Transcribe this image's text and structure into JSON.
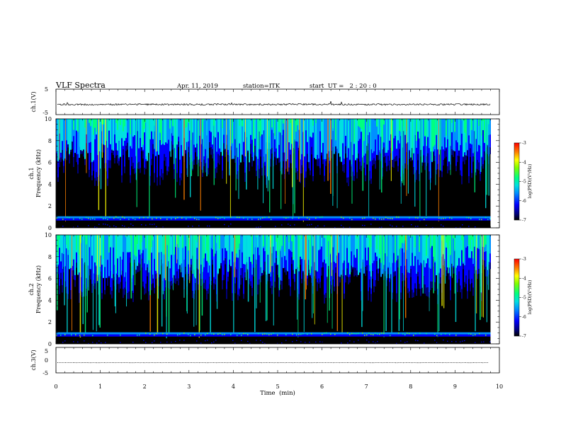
{
  "header": {
    "title": "VLF Spectra",
    "date": "Apr. 11, 2019",
    "station": "station=ITK",
    "start": "start  UT =   2 : 20 : 0"
  },
  "chart_data": [
    {
      "type": "line",
      "panel": "ch1-waveform",
      "ylabel": "ch.1(V)",
      "ylim": [
        -5,
        5
      ],
      "yticks": [
        "5",
        "-5"
      ],
      "xlim": [
        0,
        10
      ],
      "trace_level": -1,
      "grid": false
    },
    {
      "type": "heatmap",
      "panel": "ch1-spectrogram",
      "ylabel_line1": "ch.1",
      "ylabel_line2": "Frequency (kHz)",
      "ylim": [
        0,
        10
      ],
      "yticks": [
        "0",
        "2",
        "4",
        "6",
        "8",
        "10"
      ],
      "xlim": [
        0,
        10
      ],
      "data_end_min": 9.8,
      "colorbar": {
        "range": [
          -7,
          -3
        ],
        "ticks": [
          "-3",
          "-4",
          "-5",
          "-6",
          "-7"
        ],
        "label": "log(PSD)(V²/Hz)"
      }
    },
    {
      "type": "heatmap",
      "panel": "ch2-spectrogram",
      "ylabel_line1": "ch.2",
      "ylabel_line2": "Frequency (kHz)",
      "ylim": [
        0,
        10
      ],
      "yticks": [
        "0",
        "2",
        "4",
        "6",
        "8",
        "10"
      ],
      "xlim": [
        0,
        10
      ],
      "data_end_min": 9.8,
      "colorbar": {
        "range": [
          -7,
          -3
        ],
        "ticks": [
          "-3",
          "-4",
          "-5",
          "-6",
          "-7"
        ],
        "label": "log(PSD)(V²/Hz)"
      }
    },
    {
      "type": "line",
      "panel": "ch3-waveform",
      "ylabel": "ch.3(V)",
      "ylim": [
        -5,
        5
      ],
      "yticks": [
        "5",
        "0",
        "-5"
      ],
      "xlim": [
        0,
        10
      ],
      "trace_level": -1,
      "grid": false
    }
  ],
  "xaxis": {
    "label": "Time  (min)",
    "ticks": [
      "0",
      "1",
      "2",
      "3",
      "4",
      "5",
      "6",
      "7",
      "8",
      "9",
      "10"
    ]
  },
  "colors": {
    "spectrum": [
      "#000000",
      "#00007a",
      "#0000ff",
      "#0090ff",
      "#00e0e0",
      "#00ff80",
      "#80ff00",
      "#ffff00",
      "#ff8000",
      "#ff0000"
    ]
  }
}
